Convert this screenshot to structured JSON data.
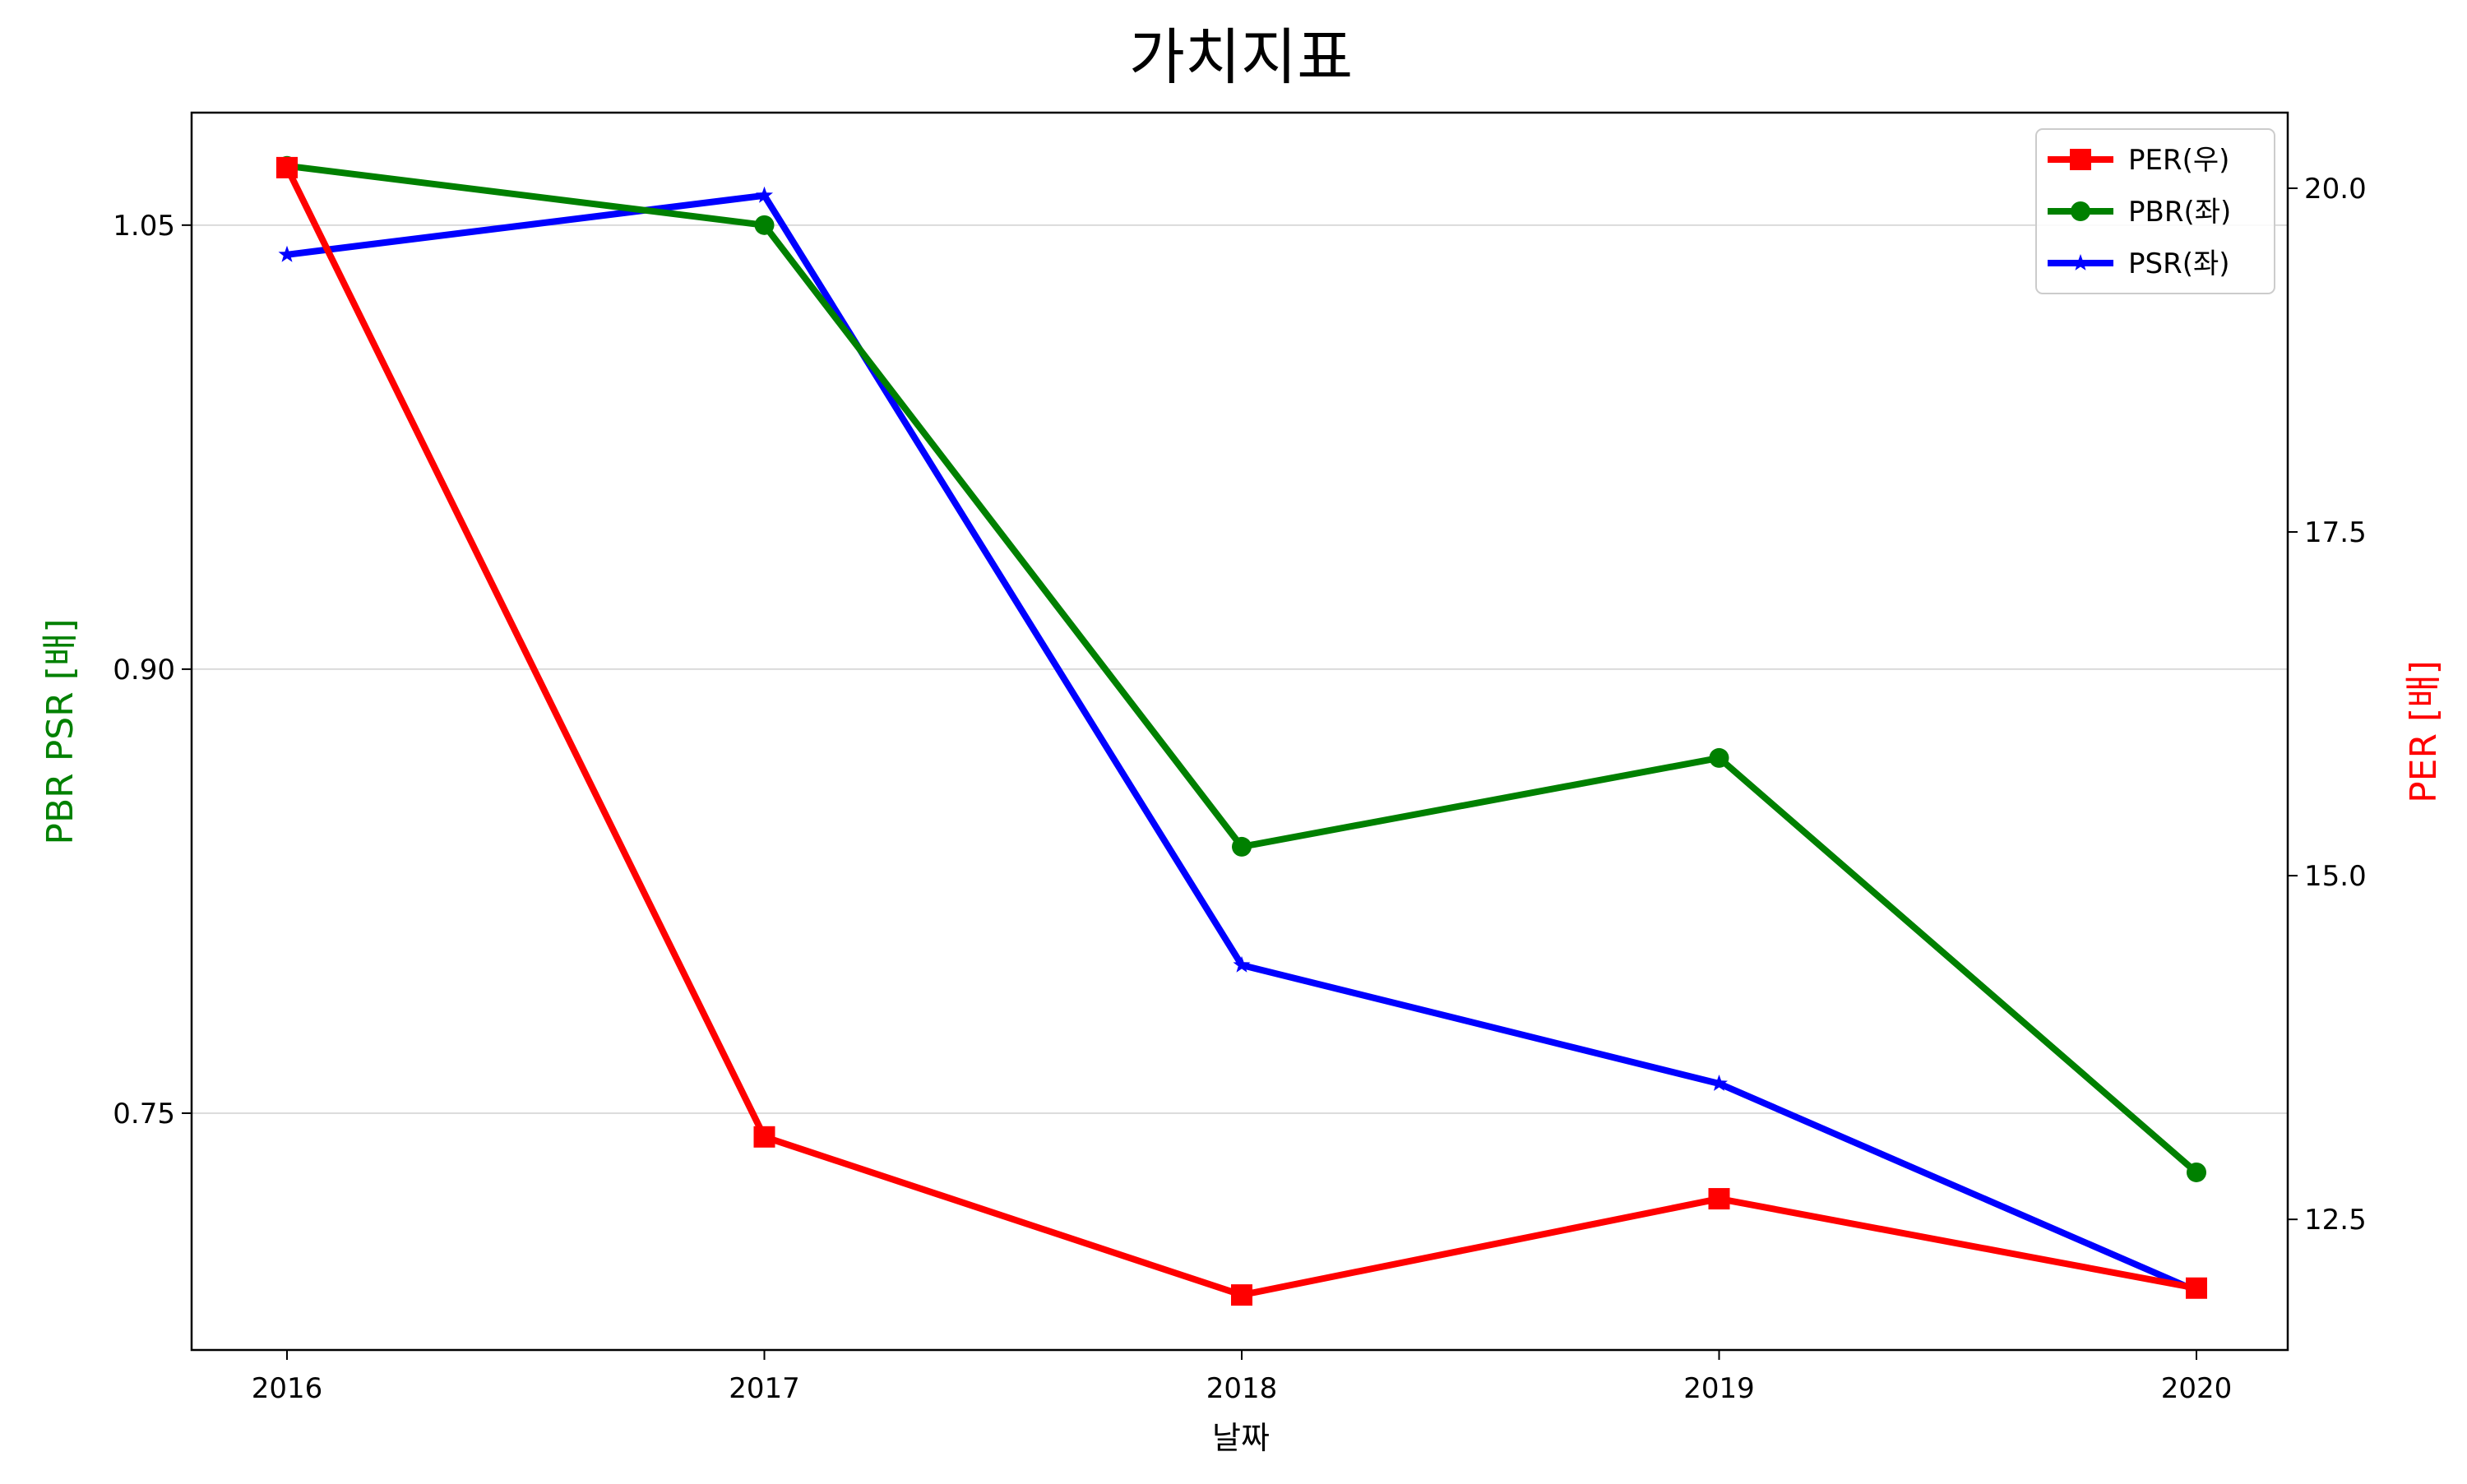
{
  "chart_data": {
    "type": "line",
    "title": "가치지표",
    "xlabel": "날짜",
    "ylabel_left": "PBR PSR [배]",
    "ylabel_right": "PER [배]",
    "ylabel_left_color": "#008000",
    "ylabel_right_color": "#ff0000",
    "categories": [
      "2016",
      "2017",
      "2018",
      "2019",
      "2020"
    ],
    "left_axis": {
      "ylim": [
        0.67,
        1.088
      ],
      "ticks": [
        0.75,
        0.9,
        1.05
      ],
      "tick_labels": [
        "0.75",
        "0.90",
        "1.05"
      ],
      "grid": true
    },
    "right_axis": {
      "ylim": [
        11.55,
        20.55
      ],
      "ticks": [
        12.5,
        15.0,
        17.5,
        20.0
      ],
      "tick_labels": [
        "12.5",
        "15.0",
        "17.5",
        "20.0"
      ]
    },
    "series": [
      {
        "name": "PER(우)",
        "axis": "right",
        "color": "#ff0000",
        "marker": "square",
        "values": [
          20.15,
          13.1,
          11.95,
          12.65,
          12.0
        ]
      },
      {
        "name": "PBR(좌)",
        "axis": "left",
        "color": "#008000",
        "marker": "circle",
        "values": [
          1.07,
          1.05,
          0.84,
          0.87,
          0.73
        ]
      },
      {
        "name": "PSR(좌)",
        "axis": "left",
        "color": "#0000ff",
        "marker": "star",
        "values": [
          1.04,
          1.06,
          0.8,
          0.76,
          0.69
        ]
      }
    ],
    "legend_position": "top-right"
  }
}
